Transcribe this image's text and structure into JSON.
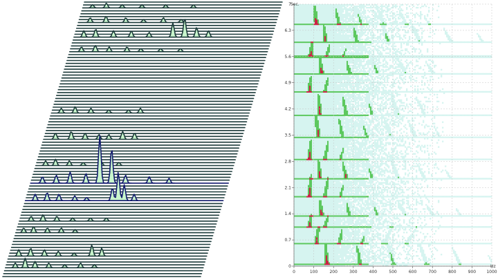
{
  "chart_data": [
    {
      "type": "area",
      "subtype": "waterfall-3d",
      "title": "",
      "xlabel": "",
      "ylabel": "",
      "trace_count": 95,
      "colors": {
        "fill": "#c8f5cc",
        "stroke": "#1c3a3a",
        "peak_stroke": "#121a6e"
      },
      "note_events": [
        {
          "t": 0.25,
          "peaks": [
            [
              50,
              3
            ],
            [
              100,
              6
            ],
            [
              150,
              4
            ],
            [
              220,
              3
            ],
            [
              300,
              2
            ],
            [
              380,
              3
            ],
            [
              450,
              2
            ]
          ]
        },
        {
          "t": 0.55,
          "peaks": [
            [
              50,
              4
            ],
            [
              110,
              5
            ],
            [
              180,
              4
            ],
            [
              250,
              3
            ],
            [
              330,
              2
            ],
            [
              420,
              7
            ],
            [
              470,
              5
            ]
          ]
        },
        {
          "t": 1.1,
          "peaks": [
            [
              40,
              3
            ],
            [
              90,
              4
            ],
            [
              160,
              3
            ],
            [
              230,
              3
            ],
            [
              300,
              2
            ]
          ]
        },
        {
          "t": 1.45,
          "peaks": [
            [
              60,
              3
            ],
            [
              120,
              4
            ],
            [
              190,
              3
            ],
            [
              270,
              2
            ],
            [
              360,
              2
            ],
            [
              440,
              2
            ]
          ]
        },
        {
          "t": 1.9,
          "peaks": [
            [
              50,
              4
            ],
            [
              110,
              5
            ],
            [
              170,
              4
            ],
            [
              250,
              3
            ],
            [
              310,
              2
            ],
            [
              440,
              8
            ],
            [
              470,
              18
            ],
            [
              500,
              10
            ],
            [
              550,
              4
            ]
          ]
        },
        {
          "t": 2.35,
          "peaks": [
            [
              60,
              4
            ],
            [
              130,
              5
            ],
            [
              200,
              7
            ],
            [
              280,
              6
            ],
            [
              350,
              30
            ],
            [
              410,
              22
            ],
            [
              480,
              5
            ],
            [
              600,
              4
            ],
            [
              700,
              3
            ]
          ]
        },
        {
          "t": 2.8,
          "peaks": [
            [
              50,
              3
            ],
            [
              100,
              4
            ],
            [
              170,
              3
            ],
            [
              240,
              2
            ],
            [
              330,
              3
            ],
            [
              420,
              2
            ]
          ]
        },
        {
          "t": 3.5,
          "peaks": [
            [
              60,
              4
            ],
            [
              140,
              5
            ],
            [
              210,
              4
            ],
            [
              280,
              3
            ],
            [
              330,
              3
            ],
            [
              400,
              5
            ],
            [
              460,
              4
            ]
          ]
        },
        {
          "t": 4.2,
          "peaks": [
            [
              50,
              3
            ],
            [
              120,
              4
            ],
            [
              200,
              3
            ],
            [
              290,
              2
            ],
            [
              390,
              2
            ],
            [
              450,
              3
            ]
          ]
        },
        {
          "t": 5.75,
          "peaks": [
            [
              60,
              3
            ],
            [
              130,
              4
            ],
            [
              200,
              3
            ],
            [
              290,
              3
            ],
            [
              360,
              2
            ],
            [
              460,
              2
            ],
            [
              560,
              2
            ]
          ]
        },
        {
          "t": 6.1,
          "peaks": [
            [
              50,
              4
            ],
            [
              110,
              5
            ],
            [
              200,
              4
            ],
            [
              290,
              4
            ],
            [
              380,
              3
            ],
            [
              500,
              9
            ],
            [
              560,
              12
            ],
            [
              620,
              6
            ],
            [
              680,
              4
            ]
          ]
        },
        {
          "t": 6.5,
          "peaks": [
            [
              60,
              3
            ],
            [
              140,
              4
            ],
            [
              240,
              3
            ],
            [
              330,
              2
            ],
            [
              430,
              3
            ],
            [
              520,
              2
            ]
          ]
        },
        {
          "t": 6.85,
          "peaks": [
            [
              50,
              2
            ],
            [
              120,
              3
            ],
            [
              200,
              2
            ],
            [
              300,
              2
            ],
            [
              420,
              2
            ],
            [
              560,
              2
            ]
          ]
        }
      ]
    },
    {
      "type": "heatmap",
      "subtype": "spectrogram",
      "title": "",
      "xlabel": "Hz",
      "ylabel": "Sec.",
      "xlim": [
        0,
        1000
      ],
      "ylim": [
        0,
        7
      ],
      "x_ticks": [
        "0",
        "100",
        "200",
        "300",
        "400",
        "500",
        "600",
        "700",
        "800",
        "900",
        "1000"
      ],
      "y_ticks": [
        "0",
        "0.7",
        "1.4",
        "2.1",
        "2.8",
        "3.5",
        "4.2",
        "4.9",
        "5.6",
        "6.3",
        "7"
      ],
      "grid": true,
      "colors": {
        "background": "#ffffff",
        "low": "#d6f4f0",
        "mid": "#5cc85e",
        "high": "#cc2244",
        "grid": "#c5c5c5"
      },
      "note_events": [
        {
          "t": 0.05,
          "f0": 120,
          "dur": 0.55,
          "partials": 6,
          "dir": -1
        },
        {
          "t": 0.6,
          "f0": 60,
          "dur": 0.45,
          "partials": 5,
          "dir": 1
        },
        {
          "t": 1.05,
          "f0": 20,
          "dur": 0.35,
          "partials": 2,
          "dir": 1
        },
        {
          "t": 1.35,
          "f0": 90,
          "dur": 0.4,
          "partials": 6,
          "dir": -1
        },
        {
          "t": 1.85,
          "f0": 20,
          "dur": 0.6,
          "partials": 4,
          "dir": 1
        },
        {
          "t": 2.35,
          "f0": 80,
          "dur": 0.5,
          "partials": 7,
          "dir": -1
        },
        {
          "t": 2.85,
          "f0": 20,
          "dur": 0.55,
          "partials": 4,
          "dir": 1
        },
        {
          "t": 3.45,
          "f0": 70,
          "dur": 0.55,
          "partials": 6,
          "dir": -1
        },
        {
          "t": 4.05,
          "f0": 80,
          "dur": 0.55,
          "partials": 5,
          "dir": -1
        },
        {
          "t": 4.65,
          "f0": 20,
          "dur": 0.45,
          "partials": 2,
          "dir": 1
        },
        {
          "t": 5.15,
          "f0": 90,
          "dur": 0.4,
          "partials": 5,
          "dir": -1
        },
        {
          "t": 5.6,
          "f0": 25,
          "dur": 0.4,
          "partials": 4,
          "dir": 1
        },
        {
          "t": 6.0,
          "f0": 110,
          "dur": 0.45,
          "partials": 6,
          "dir": -1
        },
        {
          "t": 6.45,
          "f0": 60,
          "dur": 0.5,
          "partials": 6,
          "dir": -1
        }
      ]
    }
  ]
}
